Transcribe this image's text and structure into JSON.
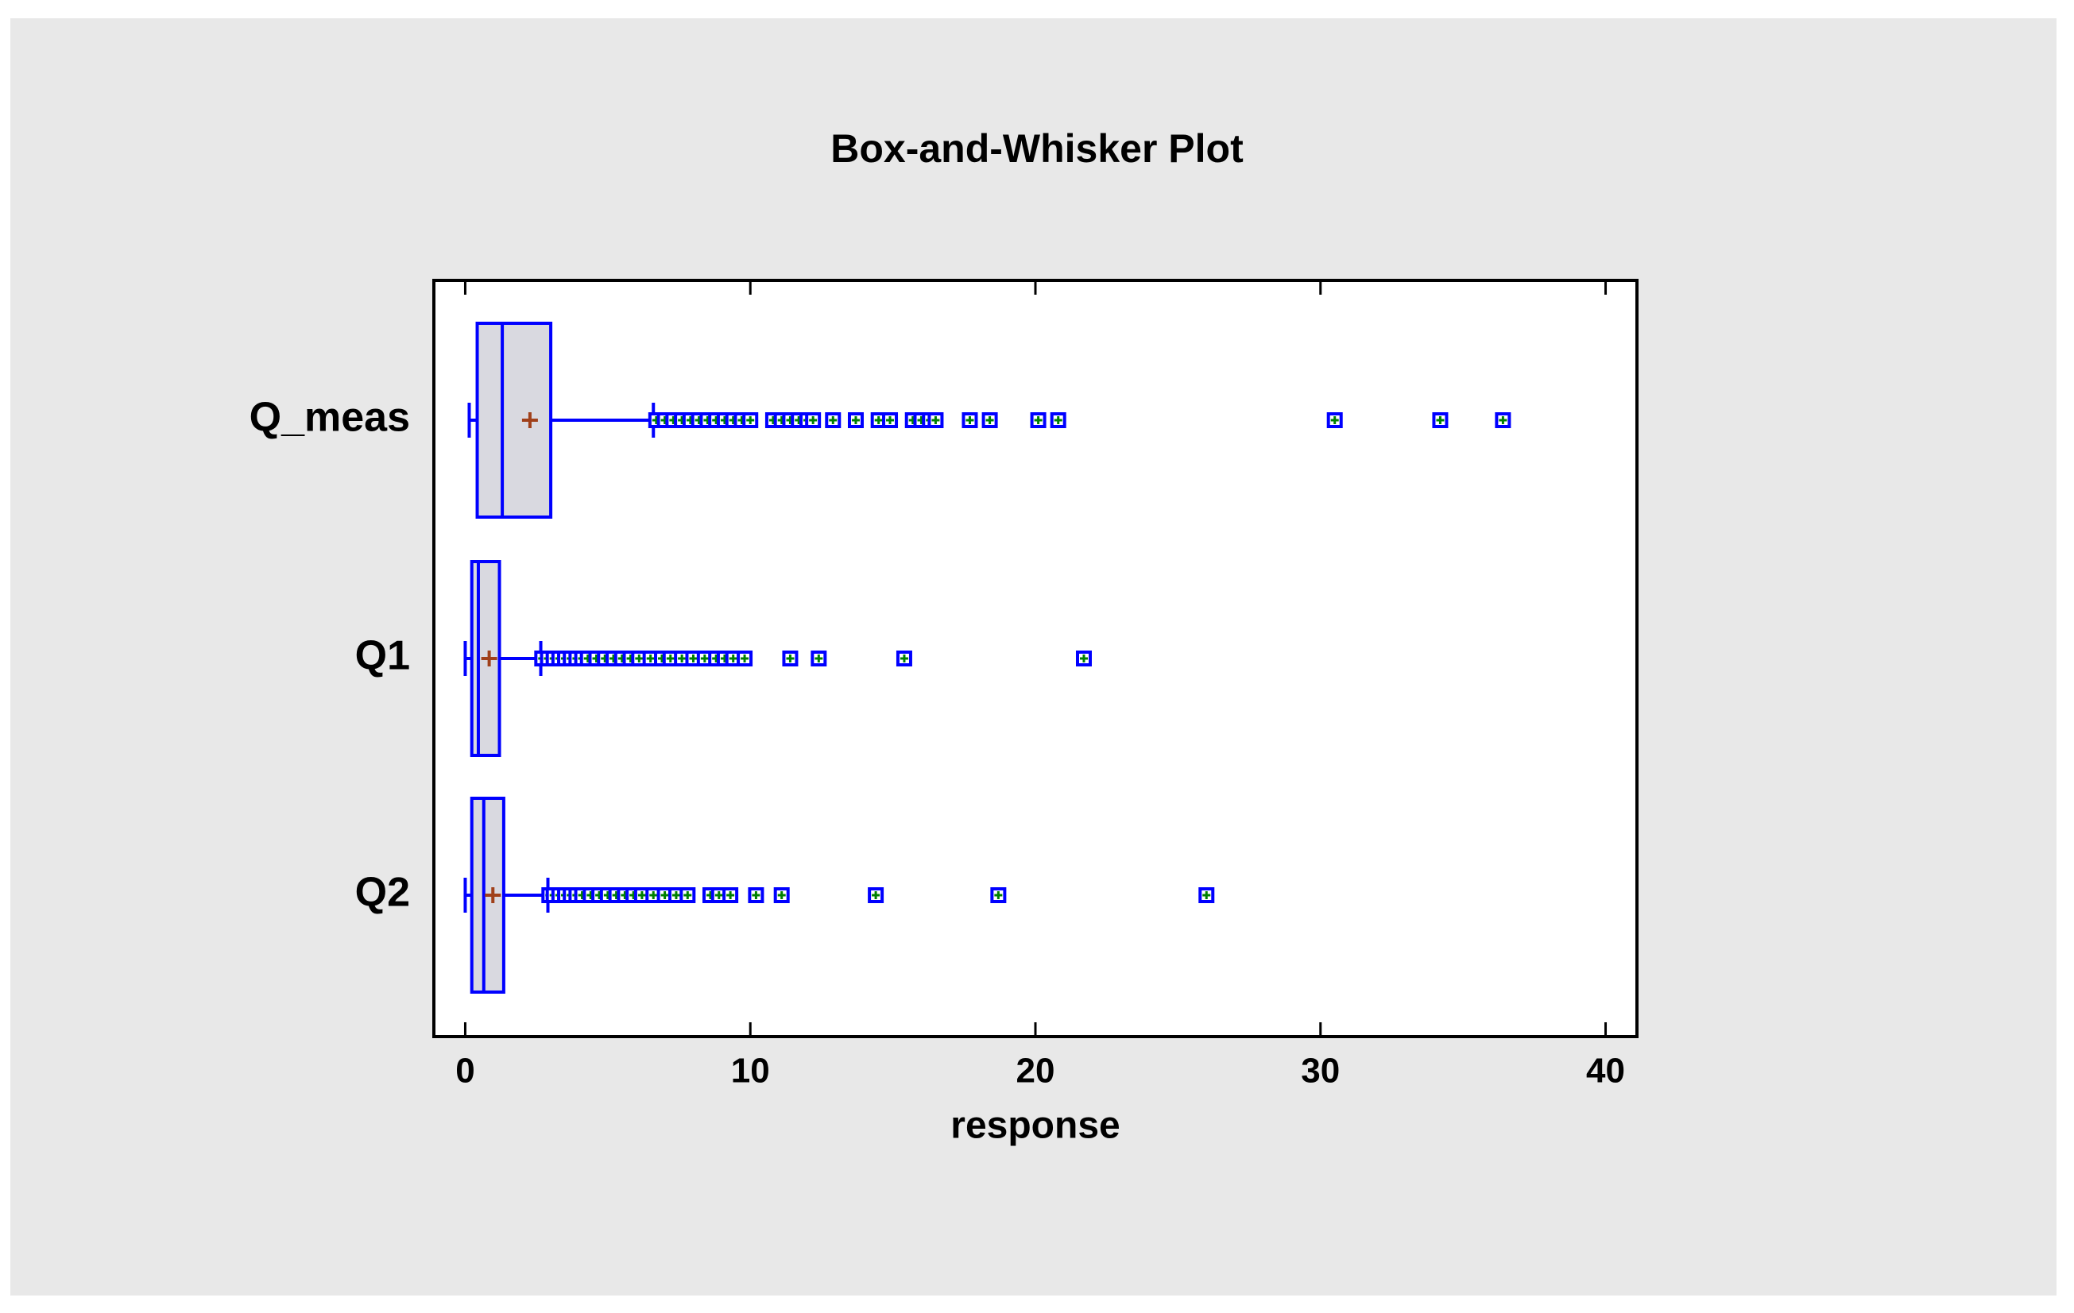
{
  "chart_data": {
    "type": "box",
    "title": "Box-and-Whisker Plot",
    "x_label": "response",
    "categories": [
      "Q_meas",
      "Q1",
      "Q2"
    ],
    "boxes": [
      {
        "whisker_low": 0.14,
        "q1": 0.42,
        "median": 1.3,
        "q3": 3.0,
        "whisker_high": 6.6,
        "mean": 2.27,
        "outliers": [
          6.7,
          7.0,
          7.3,
          7.6,
          7.9,
          8.2,
          8.5,
          8.8,
          9.1,
          9.4,
          9.7,
          10.0,
          10.8,
          11.1,
          11.4,
          11.7,
          12.0,
          12.2,
          12.9,
          13.7,
          14.5,
          14.9,
          15.7,
          16.0,
          16.3,
          16.5,
          17.7,
          18.4,
          20.1,
          20.8,
          30.5,
          34.2,
          36.4
        ]
      },
      {
        "whisker_low": 0.0,
        "q1": 0.23,
        "median": 0.46,
        "q3": 1.2,
        "whisker_high": 2.65,
        "mean": 0.84,
        "outliers": [
          2.7,
          2.9,
          3.1,
          3.3,
          3.5,
          3.7,
          3.9,
          4.1,
          4.3,
          4.6,
          4.9,
          5.2,
          5.5,
          5.8,
          6.1,
          6.5,
          6.9,
          7.2,
          7.6,
          8.0,
          8.4,
          8.8,
          9.1,
          9.4,
          9.8,
          11.4,
          12.4,
          15.4,
          21.7
        ]
      },
      {
        "whisker_low": 0.0,
        "q1": 0.23,
        "median": 0.65,
        "q3": 1.35,
        "whisker_high": 2.9,
        "mean": 0.97,
        "outliers": [
          2.95,
          3.1,
          3.3,
          3.5,
          3.7,
          3.9,
          4.1,
          4.4,
          4.7,
          5.0,
          5.3,
          5.6,
          5.9,
          6.2,
          6.6,
          7.0,
          7.4,
          7.8,
          8.6,
          8.9,
          9.3,
          10.2,
          11.1,
          14.4,
          18.7,
          26.0
        ]
      }
    ],
    "box_color": "#0000ff",
    "box_fill": "#d9d9e0",
    "mean_color": "#a0401a",
    "outlier_color": "#008000",
    "xlim": [
      -1.1,
      41.1
    ],
    "xticks": [
      0,
      10,
      20,
      30,
      40
    ]
  }
}
